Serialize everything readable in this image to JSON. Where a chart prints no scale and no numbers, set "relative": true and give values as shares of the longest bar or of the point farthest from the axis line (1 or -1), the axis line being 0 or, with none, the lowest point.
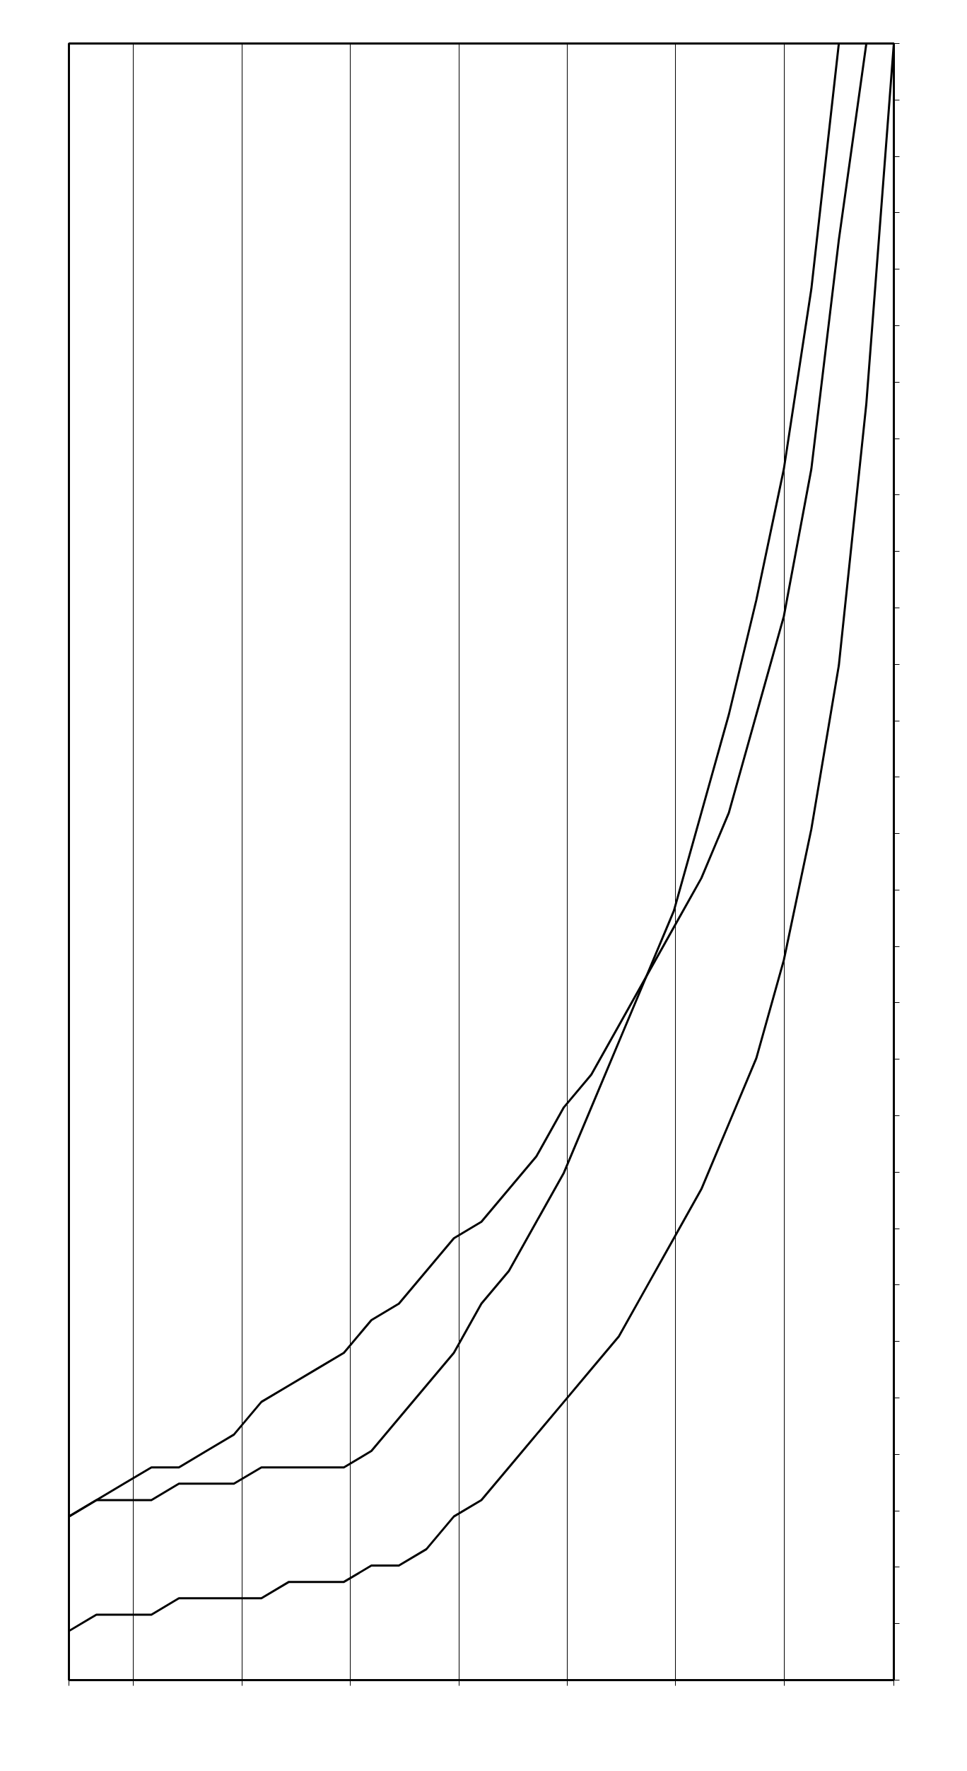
{
  "chart_data": {
    "type": "line",
    "relative": true,
    "grid": "x",
    "categories": [
      null,
      null,
      null,
      null,
      null,
      null,
      null,
      null,
      null,
      null,
      null,
      null,
      null,
      null,
      null,
      null,
      null,
      null,
      null,
      null,
      null,
      null,
      null,
      null,
      null,
      null,
      null,
      null,
      null,
      null,
      null
    ],
    "series": [
      {
        "color": "#000000",
        "values": [
          0.1,
          0.11,
          0.12,
          0.13,
          0.13,
          0.14,
          0.15,
          0.17,
          0.18,
          0.19,
          0.2,
          0.22,
          0.23,
          0.25,
          0.27,
          0.28,
          0.3,
          0.32,
          0.35,
          0.37,
          0.4,
          0.43,
          0.46,
          0.49,
          0.53,
          0.59,
          0.65,
          0.74,
          0.88,
          1.0,
          null
        ]
      },
      {
        "color": "#000000",
        "values": [
          0.1,
          0.11,
          0.11,
          0.11,
          0.12,
          0.12,
          0.12,
          0.13,
          0.13,
          0.13,
          0.13,
          0.14,
          0.16,
          0.18,
          0.2,
          0.23,
          0.25,
          0.28,
          0.31,
          0.35,
          0.39,
          0.43,
          0.47,
          0.53,
          0.59,
          0.66,
          0.74,
          0.85,
          1.0,
          null,
          null
        ]
      },
      {
        "color": "#000000",
        "values": [
          0.03,
          0.04,
          0.04,
          0.04,
          0.05,
          0.05,
          0.05,
          0.05,
          0.06,
          0.06,
          0.06,
          0.07,
          0.07,
          0.08,
          0.1,
          0.11,
          0.13,
          0.15,
          0.17,
          0.19,
          0.21,
          0.24,
          0.27,
          0.3,
          0.34,
          0.38,
          0.44,
          0.52,
          0.62,
          0.78,
          1.0
        ]
      }
    ]
  }
}
